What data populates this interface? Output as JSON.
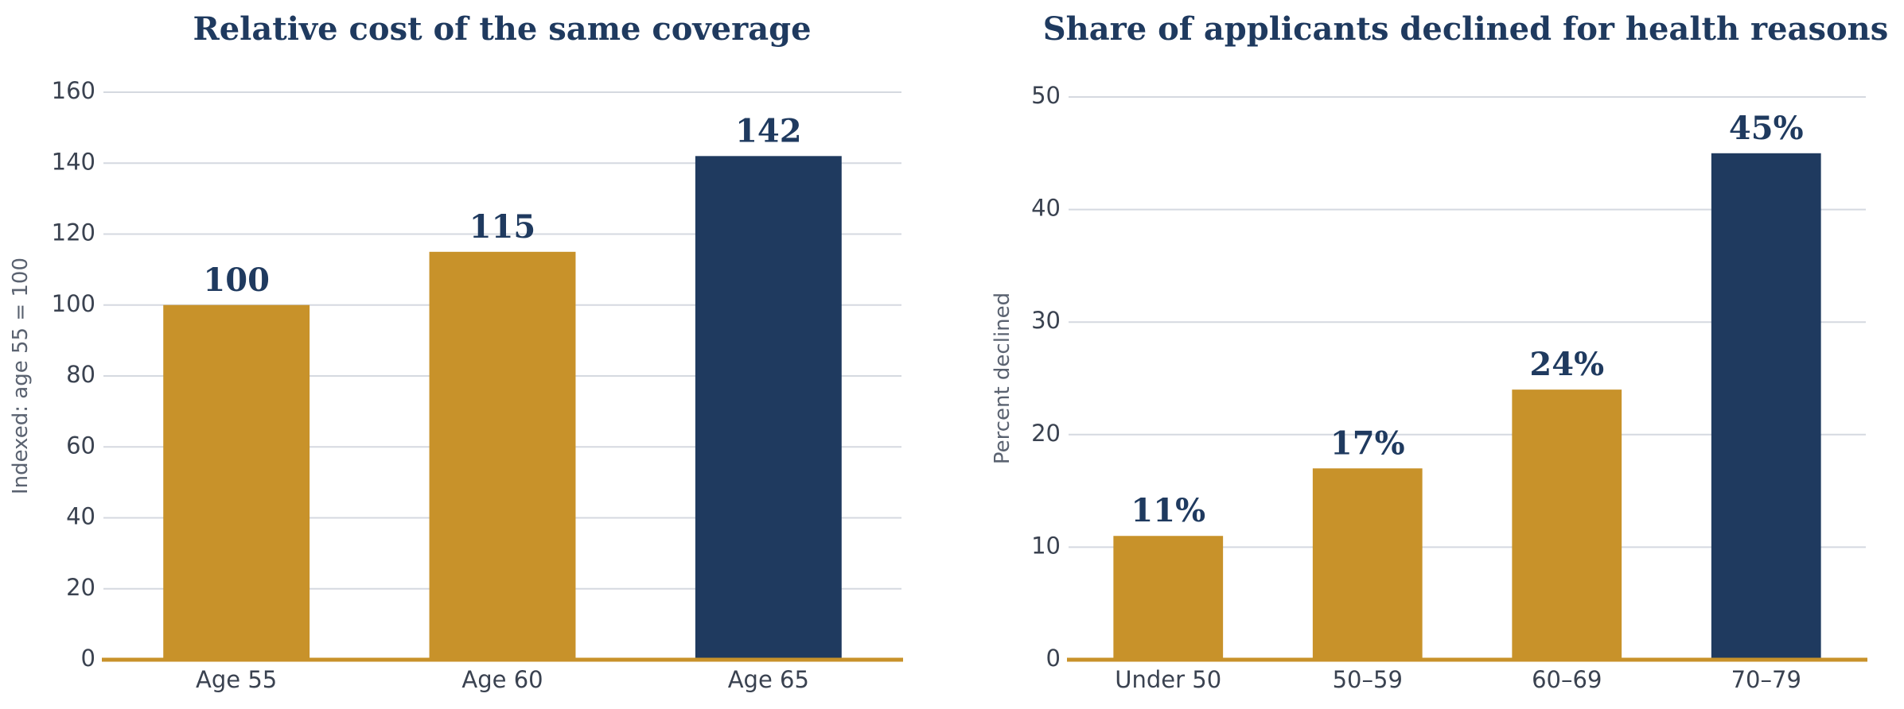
{
  "chart_data": [
    {
      "type": "bar",
      "title": "Relative cost of the same coverage",
      "ylabel": "Indexed:  age 55 = 100",
      "xlabel": "",
      "categories": [
        "Age 55",
        "Age 60",
        "Age 65"
      ],
      "values": [
        100,
        115,
        142
      ],
      "value_labels": [
        "100",
        "115",
        "142"
      ],
      "ylim": [
        0,
        160
      ],
      "yticks": [
        0,
        20,
        40,
        60,
        80,
        100,
        120,
        140,
        160
      ],
      "bar_colors": [
        "#c8922a",
        "#c8922a",
        "#1f3a5f"
      ],
      "grid": true,
      "legend": "none"
    },
    {
      "type": "bar",
      "title": "Share of applicants declined for health reasons",
      "ylabel": "Percent declined",
      "xlabel": "",
      "categories": [
        "Under 50",
        "50–59",
        "60–69",
        "70–79"
      ],
      "values": [
        11,
        17,
        24,
        45
      ],
      "value_labels": [
        "11%",
        "17%",
        "24%",
        "45%"
      ],
      "ylim": [
        0,
        50
      ],
      "yticks": [
        0,
        10,
        20,
        30,
        40,
        50
      ],
      "bar_colors": [
        "#c8922a",
        "#c8922a",
        "#c8922a",
        "#1f3a5f"
      ],
      "grid": true,
      "legend": "none"
    }
  ]
}
